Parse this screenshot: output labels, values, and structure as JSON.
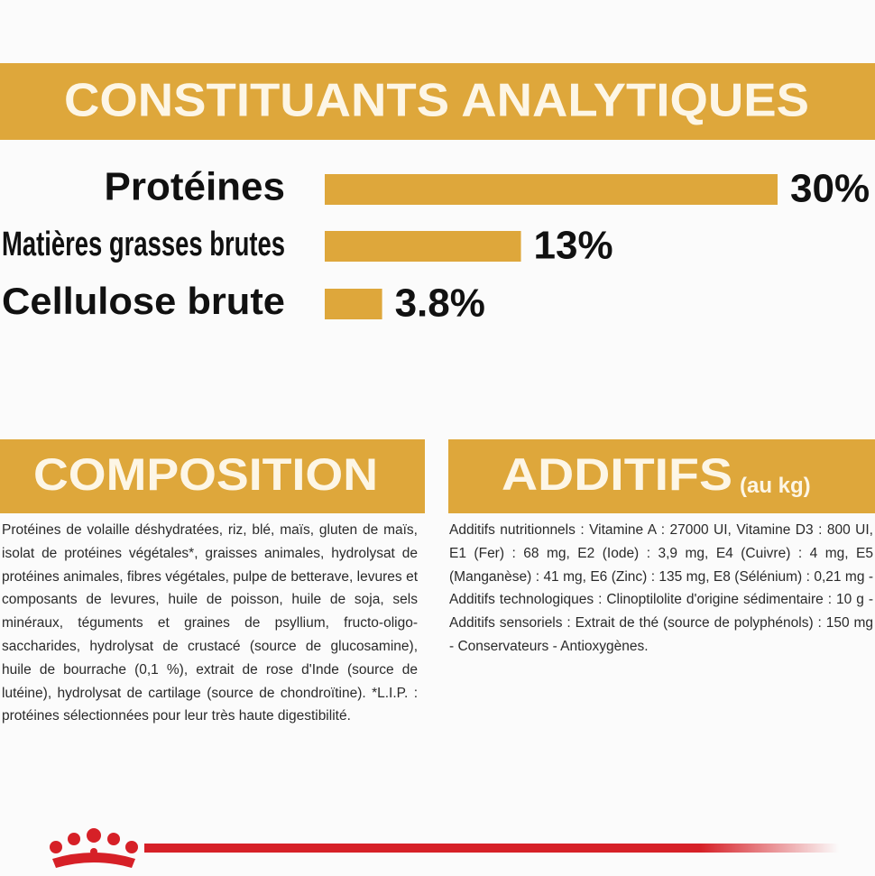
{
  "chart_data": {
    "type": "bar",
    "title": "CONSTITUANTS ANALYTIQUES",
    "categories": [
      "Protéines",
      "Matières grasses brutes",
      "Cellulose brute"
    ],
    "values": [
      30,
      13,
      3.8
    ],
    "value_labels": [
      "30%",
      "13%",
      "3.8%"
    ],
    "color": "#dea73b"
  },
  "composition": {
    "title": "COMPOSITION",
    "text": "Protéines de volaille déshydratées, riz, blé, maïs, gluten de maïs, isolat de protéines végétales*, graisses animales, hydrolysat de protéines animales, fibres végétales, pulpe de betterave, levures et composants de levures, huile de poisson, huile de soja, sels minéraux, téguments et graines de psyllium, fructo-oligo-saccharides, hydrolysat de crustacé (source de glucosamine), huile de bourrache (0,1 %), extrait de rose d'Inde (source de lutéine), hydrolysat de cartilage (source de chondroïtine). *L.I.P. : protéines sélectionnées pour leur très haute digestibilité."
  },
  "additifs": {
    "title": "ADDITIFS",
    "subtitle": "(au kg)",
    "text": "Additifs nutritionnels : Vitamine A : 27000 UI, Vitamine D3 : 800 UI, E1 (Fer) : 68 mg, E2 (Iode) : 3,9 mg, E4 (Cuivre) : 4 mg, E5 (Manganèse) : 41 mg, E6 (Zinc) : 135 mg, E8 (Sélénium) : 0,21 mg - Additifs technologiques : Clinoptilolite d'origine sédimentaire : 10 g - Additifs sensoriels : Extrait de thé (source de polyphénols) : 150 mg - Conservateurs - Antioxygènes."
  }
}
